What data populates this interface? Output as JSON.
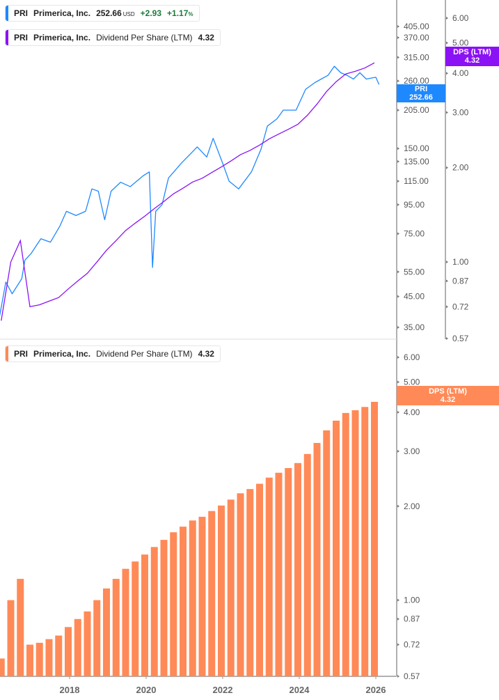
{
  "legends": {
    "price": {
      "ticker": "PRI",
      "name": "Primerica, Inc.",
      "price": "252.66",
      "currency": "USD",
      "change": "+2.93",
      "change_pct": "+1.17",
      "pct_sign": "%",
      "color": "#1e88ff"
    },
    "dps_top": {
      "ticker": "PRI",
      "name": "Primerica, Inc.",
      "metric": "Dividend Per Share (LTM)",
      "value": "4.32",
      "color": "#8a12f5"
    },
    "dps_bottom": {
      "ticker": "PRI",
      "name": "Primerica, Inc.",
      "metric": "Dividend Per Share (LTM)",
      "value": "4.32",
      "color": "#ff8a57"
    }
  },
  "tags": {
    "price": {
      "label": "PRI",
      "value": "252.66",
      "color": "#1e88ff"
    },
    "dps_top": {
      "label": "DPS (LTM)",
      "value": "4.32",
      "color": "#8a12f5"
    },
    "dps_bottom": {
      "label": "DPS (LTM)",
      "value": "4.32",
      "color": "#ff8a57"
    }
  },
  "chart_data": [
    {
      "type": "line",
      "scale": "log",
      "series": [
        {
          "name": "PRI",
          "axis": "price",
          "color": "#1e88ff",
          "x": [
            "2016-03",
            "2016-05",
            "2016-07",
            "2016-10",
            "2016-11",
            "2017-01",
            "2017-04",
            "2017-07",
            "2017-10",
            "2017-12",
            "2018-03",
            "2018-06",
            "2018-08",
            "2018-10",
            "2018-12",
            "2019-02",
            "2019-05",
            "2019-08",
            "2019-12",
            "2020-02",
            "2020-03",
            "2020-04",
            "2020-06",
            "2020-08",
            "2020-12",
            "2021-03",
            "2021-05",
            "2021-08",
            "2021-10",
            "2022-01",
            "2022-03",
            "2022-06",
            "2022-10",
            "2023-01",
            "2023-03",
            "2023-06",
            "2023-08",
            "2023-12",
            "2024-03",
            "2024-06",
            "2024-10",
            "2024-12",
            "2025-02",
            "2025-04",
            "2025-06",
            "2025-08",
            "2025-10",
            "2026-01",
            "2026-02"
          ],
          "y": [
            38,
            50.6,
            46,
            52,
            60.5,
            64,
            72,
            70,
            80,
            90,
            87,
            90,
            108,
            106,
            84,
            106,
            114,
            110,
            120,
            124,
            57,
            90,
            95,
            118,
            133,
            144,
            152,
            140,
            163,
            133,
            115,
            108,
            124,
            149,
            180,
            191,
            205,
            205,
            243,
            257,
            272,
            293,
            278,
            272,
            264,
            278,
            264,
            268,
            252.66
          ]
        },
        {
          "name": "DPS (LTM)",
          "axis": "dps",
          "color": "#8a12f5",
          "source": "dps_quarterly"
        }
      ],
      "price_axis": {
        "ticks": [
          "405.00",
          "370.00",
          "315.00",
          "260.00",
          "205.00",
          "150.00",
          "135.00",
          "115.00",
          "95.00",
          "75.00",
          "55.00",
          "45.00",
          "35.00"
        ],
        "range": [
          35,
          405
        ]
      },
      "dps_axis": {
        "ticks": [
          "6.00",
          "5.00",
          "4.00",
          "3.00",
          "2.00",
          "1.00",
          "0.87",
          "0.72",
          "0.57"
        ],
        "range": [
          0.57,
          6
        ]
      }
    },
    {
      "type": "bar",
      "scale": "log",
      "name": "DPS (LTM)",
      "color": "#ff8a57",
      "start": "2016-04",
      "frequency": "quarterly",
      "values": [
        0.65,
        1.0,
        1.17,
        0.72,
        0.73,
        0.75,
        0.77,
        0.82,
        0.87,
        0.92,
        1.0,
        1.09,
        1.17,
        1.26,
        1.33,
        1.4,
        1.48,
        1.56,
        1.65,
        1.72,
        1.8,
        1.85,
        1.93,
        2.01,
        2.1,
        2.2,
        2.27,
        2.36,
        2.47,
        2.56,
        2.65,
        2.75,
        2.94,
        3.19,
        3.5,
        3.76,
        3.98,
        4.06,
        4.16,
        4.32
      ],
      "y_axis": {
        "ticks": [
          "6.00",
          "5.00",
          "4.00",
          "3.00",
          "2.00",
          "1.00",
          "0.87",
          "0.72",
          "0.57"
        ],
        "range": [
          0.57,
          6
        ]
      },
      "x_ticks": [
        "2018",
        "2020",
        "2022",
        "2024",
        "2026"
      ]
    }
  ]
}
